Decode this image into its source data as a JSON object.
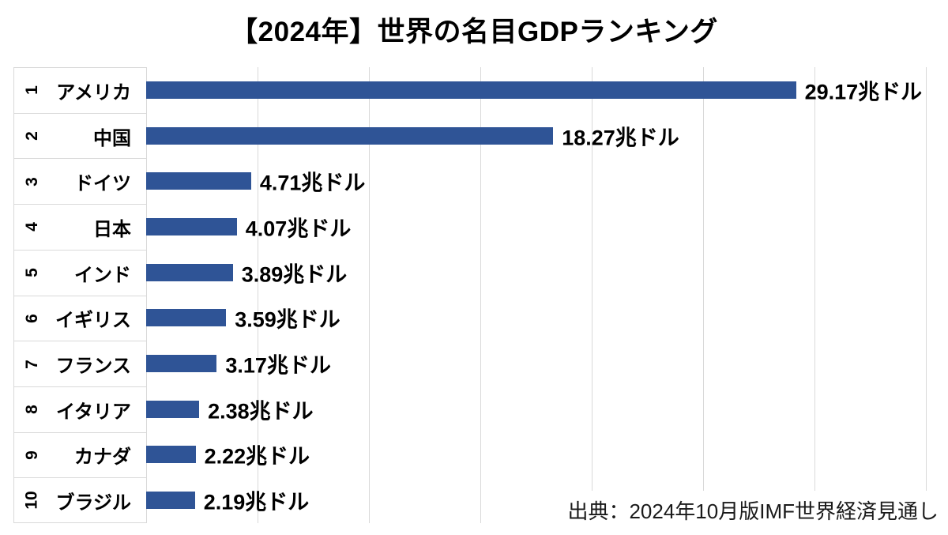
{
  "title": "【2024年】世界の名目GDPランキング",
  "source": "出典：2024年10月版IMF世界経済見通し",
  "chart_data": {
    "type": "bar",
    "orientation": "horizontal",
    "title": "【2024年】世界の名目GDPランキング",
    "ranks": [
      "1",
      "2",
      "3",
      "4",
      "5",
      "6",
      "7",
      "8",
      "9",
      "10"
    ],
    "categories": [
      "アメリカ",
      "中国",
      "ドイツ",
      "日本",
      "インド",
      "イギリス",
      "フランス",
      "イタリア",
      "カナダ",
      "ブラジル"
    ],
    "values": [
      29.17,
      18.27,
      4.71,
      4.07,
      3.89,
      3.59,
      3.17,
      2.38,
      2.22,
      2.19
    ],
    "value_labels": [
      "29.17兆ドル",
      "18.27兆ドル",
      "4.71兆ドル",
      "4.07兆ドル",
      "3.89兆ドル",
      "3.59兆ドル",
      "3.17兆ドル",
      "2.38兆ドル",
      "2.22兆ドル",
      "2.19兆ドル"
    ],
    "unit": "兆ドル",
    "xlim": [
      0,
      35
    ],
    "gridline_interval": 5,
    "grid": true,
    "legend": false,
    "bar_color": "#2F5496",
    "gridline_color": "#D9D9D9",
    "source": "出典：2024年10月版IMF世界経済見通し"
  }
}
